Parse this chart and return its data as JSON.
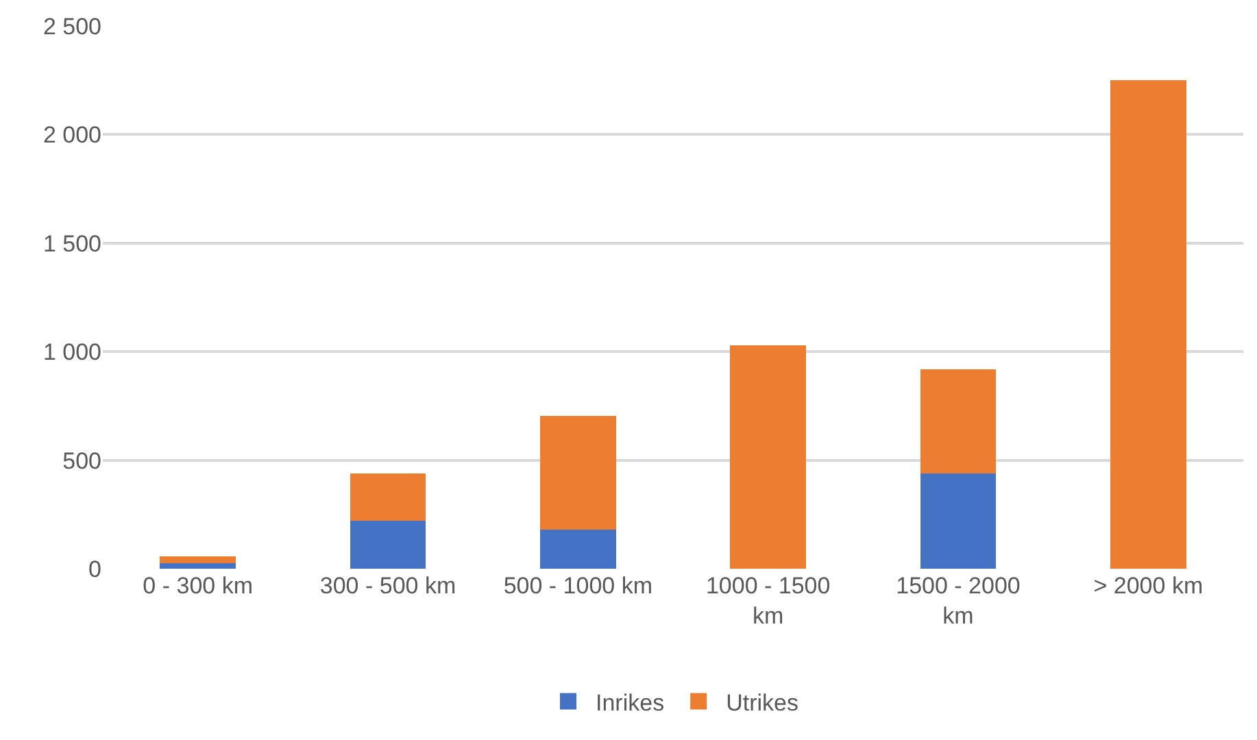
{
  "chart_data": {
    "type": "bar",
    "stacked": true,
    "categories": [
      "0 - 300 km",
      "300 - 500 km",
      "500 - 1000 km",
      "1000 - 1500 km",
      "1500 - 2000 km",
      "> 2000 km"
    ],
    "series": [
      {
        "name": "Inrikes",
        "color": "#4472c4",
        "values": [
          25,
          220,
          180,
          0,
          440,
          0
        ]
      },
      {
        "name": "Utrikes",
        "color": "#ed7d31",
        "values": [
          32,
          220,
          525,
          1030,
          480,
          2250
        ]
      }
    ],
    "ylim": [
      0,
      2500
    ],
    "yticks": [
      {
        "value": 0,
        "label": "0"
      },
      {
        "value": 500,
        "label": "500"
      },
      {
        "value": 1000,
        "label": "1 000"
      },
      {
        "value": 1500,
        "label": "1 500"
      },
      {
        "value": 2000,
        "label": "2 000"
      },
      {
        "value": 2500,
        "label": "2 500"
      }
    ],
    "grid": "y",
    "legend": "bottom"
  }
}
